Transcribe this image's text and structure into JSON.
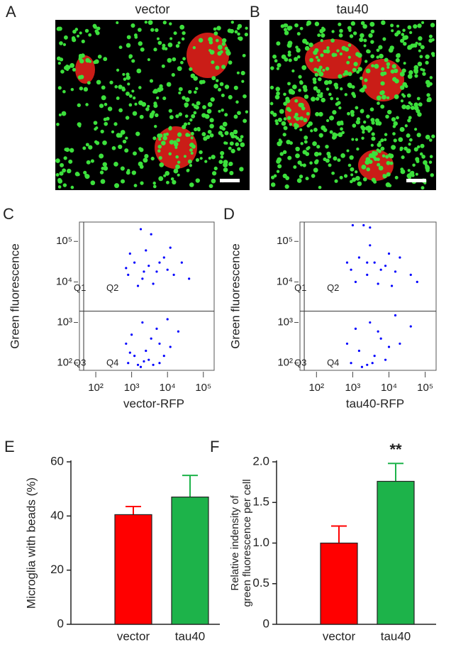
{
  "panels": [
    {
      "letter": "A",
      "title": "vector"
    },
    {
      "letter": "B",
      "title": "tau40"
    }
  ],
  "chart_data": [
    {
      "type": "scatter",
      "panel": "C",
      "x_label": "vector-RFP",
      "y_label": "Green fluorescence",
      "log_scale": true,
      "color": "#0000ff",
      "xlim": [
        35,
        200000
      ],
      "ylim": [
        66,
        300000
      ],
      "xticks": [
        {
          "value": 100,
          "label": "10²"
        },
        {
          "value": 1000,
          "label": "10³"
        },
        {
          "value": 10000,
          "label": "10⁴"
        },
        {
          "value": 100000,
          "label": "10⁵"
        }
      ],
      "yticks": [
        {
          "value": 100,
          "label": "10²"
        },
        {
          "value": 1000,
          "label": "10³"
        },
        {
          "value": 10000,
          "label": "10⁴"
        },
        {
          "value": 100000,
          "label": "10⁵"
        }
      ],
      "gate_x": 46,
      "gate_y": 1900,
      "annotations": [
        "Q1",
        "Q2",
        "Q3",
        "Q4"
      ],
      "x": [
        800,
        1200,
        2000,
        3000,
        5000,
        8000,
        1500,
        2500,
        4000,
        6000,
        10000,
        15000,
        900,
        1800,
        3500,
        700,
        2200,
        12000,
        25000,
        40000,
        800,
        1200,
        1800,
        2500,
        3000,
        4000,
        6000,
        1000,
        2000,
        5000,
        8000,
        12000,
        1500,
        700,
        3500,
        20000,
        10000,
        2200,
        900,
        6000
      ],
      "values": [
        15000,
        30000,
        12000,
        25000,
        18000,
        40000,
        8000,
        60000,
        9000,
        30000,
        20000,
        15000,
        50000,
        200000,
        150000,
        22000,
        18000,
        70000,
        30000,
        12000,
        100,
        150,
        80,
        200,
        120,
        90,
        300,
        500,
        1000,
        700,
        150,
        250,
        90,
        300,
        400,
        600,
        1200,
        110,
        180,
        100
      ]
    },
    {
      "type": "scatter",
      "panel": "D",
      "x_label": "tau40-RFP",
      "y_label": "Green fluorescence",
      "log_scale": true,
      "color": "#0000ff",
      "xlim": [
        35,
        200000
      ],
      "ylim": [
        66,
        300000
      ],
      "xticks": [
        {
          "value": 100,
          "label": "10²"
        },
        {
          "value": 1000,
          "label": "10³"
        },
        {
          "value": 10000,
          "label": "10⁴"
        },
        {
          "value": 100000,
          "label": "10⁵"
        }
      ],
      "yticks": [
        {
          "value": 100,
          "label": "10²"
        },
        {
          "value": 1000,
          "label": "10³"
        },
        {
          "value": 10000,
          "label": "10⁴"
        },
        {
          "value": 100000,
          "label": "10⁵"
        }
      ],
      "gate_x": 46,
      "gate_y": 1900,
      "annotations": [
        "Q1",
        "Q2",
        "Q3",
        "Q4"
      ],
      "x": [
        900,
        1500,
        2500,
        4000,
        6000,
        10000,
        1200,
        3000,
        5000,
        8000,
        15000,
        20000,
        1000,
        2000,
        3000,
        700,
        2500,
        40000,
        60000,
        12000,
        900,
        1500,
        2500,
        4000,
        6000,
        10000,
        1200,
        3000,
        20000,
        8000,
        1800,
        5000,
        15000,
        700,
        3500,
        40000
      ],
      "values": [
        20000,
        40000,
        15000,
        30000,
        20000,
        50000,
        10000,
        80000,
        9000,
        25000,
        18000,
        40000,
        250000,
        250000,
        220000,
        30000,
        30000,
        15000,
        10000,
        8000,
        100,
        200,
        90,
        150,
        400,
        250,
        700,
        1000,
        300,
        120,
        80,
        600,
        1500,
        300,
        100,
        800
      ]
    },
    {
      "type": "bar",
      "panel": "E",
      "y_label": "Microglia with beads (%)",
      "categories": [
        "vector",
        "tau40"
      ],
      "values": [
        40.5,
        47
      ],
      "errors": [
        3,
        8
      ],
      "colors": [
        "#ff0000",
        "#1db34a"
      ],
      "ylim": [
        0,
        60
      ],
      "yticks": [
        0,
        20,
        40,
        60
      ]
    },
    {
      "type": "bar",
      "panel": "F",
      "y_label": [
        "Relative indensity of",
        "green fluorescence per cell"
      ],
      "categories": [
        "vector",
        "tau40"
      ],
      "values": [
        1.0,
        1.76
      ],
      "errors": [
        0.21,
        0.22
      ],
      "colors": [
        "#ff0000",
        "#1db34a"
      ],
      "annotation": "**",
      "ylim": [
        0,
        2
      ],
      "yticks": [
        0,
        0.5,
        {
          "value": 1,
          "label": "1.0"
        },
        1.5,
        {
          "value": 2,
          "label": "2.0"
        }
      ]
    }
  ]
}
